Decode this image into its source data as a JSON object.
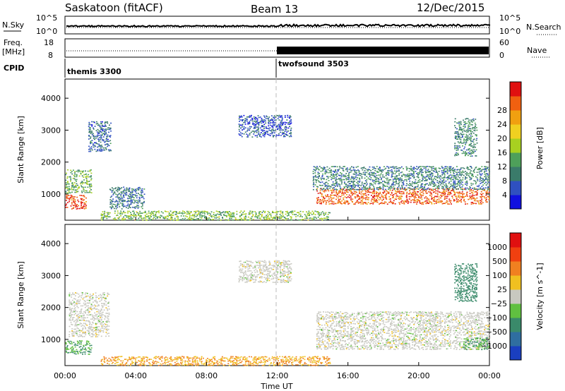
{
  "header": {
    "station": "Saskatoon (fitACF)",
    "beam": "Beam 13",
    "date": "12/Dec/2015"
  },
  "noise_panel": {
    "left_label": "N.Sky",
    "left_ticks": [
      "10^5",
      "10^0"
    ],
    "right_ticks": [
      "10^5",
      "10^0"
    ],
    "right_label": "N.Search"
  },
  "freq_panel": {
    "left_label_1": "Freq.",
    "left_label_2": "[MHz]",
    "left_ticks": [
      "18",
      "8"
    ],
    "right_ticks": [
      "60",
      "0"
    ],
    "right_label": "Nave"
  },
  "cpid": {
    "label": "CPID",
    "modes": [
      {
        "name": "themis 3300",
        "start_hour": 0
      },
      {
        "name": "twofsound 3503",
        "start_hour": 12
      }
    ]
  },
  "chart_data": [
    {
      "type": "heatmap",
      "panel": "power",
      "ylabel": "Slant Range [km]",
      "xlabel": "Time UT",
      "x_ticks": [
        "00:00",
        "04:00",
        "08:00",
        "12:00",
        "16:00",
        "20:00",
        "00:00"
      ],
      "xlim_hours": [
        0,
        24
      ],
      "ylim_km": [
        180,
        4600
      ],
      "y_ticks": [
        1000,
        2000,
        3000,
        4000
      ],
      "colorbar": {
        "label": "Power [dB]",
        "range": [
          0,
          32
        ],
        "ticks": [
          "4",
          "8",
          "12",
          "16",
          "20",
          "24",
          "28"
        ],
        "colors": [
          "#1010e0",
          "#2f50c0",
          "#3a7b6a",
          "#4ea05a",
          "#a8d020",
          "#f0d020",
          "#f0a010",
          "#f06010",
          "#e01010"
        ]
      },
      "echo_regions": [
        {
          "t": [
            0.0,
            1.2
          ],
          "range": [
            550,
            1000
          ],
          "value": 28
        },
        {
          "t": [
            0.0,
            1.5
          ],
          "range": [
            1050,
            1800
          ],
          "value": 13
        },
        {
          "t": [
            1.3,
            2.6
          ],
          "range": [
            2350,
            3300
          ],
          "value": 7
        },
        {
          "t": [
            2.5,
            4.5
          ],
          "range": [
            550,
            1250
          ],
          "value": 8
        },
        {
          "t": [
            2.0,
            15.0
          ],
          "range": [
            200,
            500
          ],
          "value": 14
        },
        {
          "t": [
            9.8,
            12.8
          ],
          "range": [
            2800,
            3500
          ],
          "value": 6
        },
        {
          "t": [
            14.2,
            24.0
          ],
          "range": [
            700,
            1200
          ],
          "value": 27
        },
        {
          "t": [
            14.0,
            24.0
          ],
          "range": [
            1150,
            1900
          ],
          "value": 9
        },
        {
          "t": [
            22.0,
            23.3
          ],
          "range": [
            2200,
            3400
          ],
          "value": 10
        }
      ]
    },
    {
      "type": "heatmap",
      "panel": "velocity",
      "ylabel": "Slant Range [km]",
      "xlabel": "Time UT",
      "x_ticks": [
        "00:00",
        "04:00",
        "08:00",
        "12:00",
        "16:00",
        "20:00",
        "00:00"
      ],
      "xlim_hours": [
        0,
        24
      ],
      "ylim_km": [
        180,
        4600
      ],
      "y_ticks": [
        1000,
        2000,
        3000,
        4000
      ],
      "colorbar": {
        "label": "Velocity [m s^-1]",
        "ticks": [
          "1000",
          "500",
          "100",
          "25",
          "−25",
          "−100",
          "−500",
          "−1000"
        ],
        "colors": [
          "#1a3fc0",
          "#2f6ea0",
          "#3a8a6a",
          "#60c040",
          "#c8c8c0",
          "#f0c020",
          "#f08020",
          "#f04010",
          "#e01010"
        ]
      },
      "echo_regions": [
        {
          "t": [
            0.0,
            1.5
          ],
          "range": [
            550,
            1000
          ],
          "value": 100
        },
        {
          "t": [
            0.2,
            2.5
          ],
          "range": [
            1100,
            2500
          ],
          "value": 0
        },
        {
          "t": [
            2.0,
            15.0
          ],
          "range": [
            200,
            500
          ],
          "value": -100
        },
        {
          "t": [
            9.8,
            12.8
          ],
          "range": [
            2800,
            3500
          ],
          "value": 0
        },
        {
          "t": [
            14.2,
            24.0
          ],
          "range": [
            700,
            1900
          ],
          "value": 0
        },
        {
          "t": [
            22.5,
            24.0
          ],
          "range": [
            700,
            1100
          ],
          "value": 100
        },
        {
          "t": [
            22.0,
            23.3
          ],
          "range": [
            2200,
            3400
          ],
          "value": 300
        }
      ]
    }
  ],
  "time_axis_label": "Time UT"
}
